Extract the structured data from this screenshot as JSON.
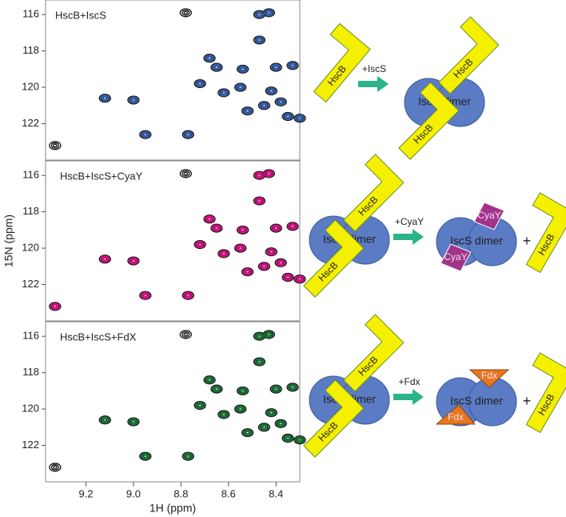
{
  "chart_data": [
    {
      "type": "scatter",
      "title": "HscB+IscS",
      "ylabel": "15N (ppm)",
      "xlim": [
        9.37,
        8.3
      ],
      "ylim": [
        115.2,
        124
      ],
      "yticks": [
        116,
        118,
        120,
        122
      ],
      "series": [
        {
          "color": "#111111",
          "x": [
            9.33,
            9.12,
            9.0,
            8.95,
            8.77,
            8.78,
            8.68,
            8.65,
            8.62,
            8.55,
            8.54,
            8.47,
            8.43,
            8.47,
            8.4,
            8.33,
            8.42,
            8.38,
            8.35,
            8.3,
            8.45,
            8.72,
            8.52
          ],
          "y": [
            123.2,
            120.6,
            120.7,
            122.6,
            122.6,
            115.9,
            118.4,
            118.9,
            120.3,
            120.0,
            119.0,
            116.0,
            115.9,
            117.4,
            118.9,
            118.8,
            120.2,
            120.8,
            121.6,
            121.7,
            121.0,
            119.8,
            121.3
          ]
        },
        {
          "color": "#3a64b0",
          "x": [
            9.12,
            9.0,
            8.95,
            8.77,
            8.68,
            8.65,
            8.62,
            8.55,
            8.54,
            8.47,
            8.43,
            8.47,
            8.4,
            8.33,
            8.42,
            8.38,
            8.35,
            8.3,
            8.45,
            8.72,
            8.52
          ],
          "y": [
            120.6,
            120.7,
            122.6,
            122.6,
            118.4,
            118.9,
            120.3,
            120.0,
            119.0,
            116.0,
            115.9,
            117.4,
            118.9,
            118.8,
            120.2,
            120.8,
            121.6,
            121.7,
            121.0,
            119.8,
            121.3
          ]
        }
      ]
    },
    {
      "type": "scatter",
      "title": "HscB+IscS+CyaY",
      "xlim": [
        9.37,
        8.3
      ],
      "ylim": [
        115.2,
        124
      ],
      "yticks": [
        116,
        118,
        120,
        122
      ],
      "series": [
        {
          "color": "#111111",
          "x": [
            9.33,
            9.12,
            9.0,
            8.95,
            8.77,
            8.78,
            8.68,
            8.65,
            8.62,
            8.55,
            8.54,
            8.47,
            8.43,
            8.47,
            8.4,
            8.33,
            8.42,
            8.38,
            8.35,
            8.3,
            8.45,
            8.72,
            8.52
          ],
          "y": [
            123.2,
            120.6,
            120.7,
            122.6,
            122.6,
            115.9,
            118.4,
            118.9,
            120.3,
            120.0,
            119.0,
            116.0,
            115.9,
            117.4,
            118.9,
            118.8,
            120.2,
            120.8,
            121.6,
            121.7,
            121.0,
            119.8,
            121.3
          ]
        },
        {
          "color": "#e0158a",
          "x": [
            9.33,
            9.12,
            9.0,
            8.95,
            8.77,
            8.68,
            8.65,
            8.62,
            8.55,
            8.54,
            8.47,
            8.43,
            8.47,
            8.4,
            8.33,
            8.42,
            8.38,
            8.35,
            8.3,
            8.45,
            8.72,
            8.52
          ],
          "y": [
            123.2,
            120.6,
            120.7,
            122.6,
            122.6,
            118.4,
            118.9,
            120.3,
            120.0,
            119.0,
            116.0,
            115.9,
            117.4,
            118.9,
            118.8,
            120.2,
            120.8,
            121.6,
            121.7,
            121.0,
            119.8,
            121.3
          ]
        }
      ]
    },
    {
      "type": "scatter",
      "title": "HscB+IscS+FdX",
      "xlabel": "1H (ppm)",
      "xlim": [
        9.37,
        8.3
      ],
      "ylim": [
        115.2,
        124
      ],
      "yticks": [
        116,
        118,
        120,
        122
      ],
      "xticks": [
        9.2,
        {
          "value": 9,
          "label": "9.0"
        },
        8.8,
        8.6,
        8.4
      ],
      "series": [
        {
          "color": "#111111",
          "x": [
            9.33,
            9.12,
            9.0,
            8.95,
            8.77,
            8.78,
            8.68,
            8.65,
            8.62,
            8.55,
            8.54,
            8.47,
            8.43,
            8.47,
            8.4,
            8.33,
            8.42,
            8.38,
            8.35,
            8.3,
            8.45,
            8.72,
            8.52
          ],
          "y": [
            123.2,
            120.6,
            120.7,
            122.6,
            122.6,
            115.9,
            118.4,
            118.9,
            120.3,
            120.0,
            119.0,
            116.0,
            115.9,
            117.4,
            118.9,
            118.8,
            120.2,
            120.8,
            121.6,
            121.7,
            121.0,
            119.8,
            121.3
          ]
        },
        {
          "color": "#1e7a3c",
          "x": [
            9.12,
            9.0,
            8.95,
            8.77,
            8.68,
            8.65,
            8.62,
            8.55,
            8.54,
            8.47,
            8.43,
            8.47,
            8.4,
            8.33,
            8.42,
            8.38,
            8.35,
            8.3,
            8.45,
            8.72,
            8.52
          ],
          "y": [
            120.6,
            120.7,
            122.6,
            122.6,
            118.4,
            118.9,
            120.3,
            120.0,
            119.0,
            116.0,
            115.9,
            117.4,
            118.9,
            118.8,
            120.2,
            120.8,
            121.6,
            121.7,
            121.0,
            119.8,
            121.3
          ]
        }
      ]
    }
  ],
  "schemes": [
    {
      "start": [
        "HscB"
      ],
      "arrow": "+IscS",
      "end": {
        "dimer": "IscS dimer",
        "partners": [
          "HscB",
          "HscB"
        ]
      }
    },
    {
      "start": {
        "dimer": "IscS dimer",
        "partners": [
          "HscB",
          "HscB"
        ]
      },
      "arrow": "+CyaY",
      "end": {
        "dimer": "IscS dimer",
        "partners": [
          "CyaY",
          "CyaY"
        ]
      },
      "plus": "+",
      "released": "HscB"
    },
    {
      "start": {
        "dimer": "IscS dimer",
        "partners": [
          "HscB",
          "HscB"
        ]
      },
      "arrow": "+Fdx",
      "end": {
        "dimer": "IscS dimer",
        "partners": [
          "Fdx",
          "Fdx"
        ]
      },
      "plus": "+",
      "released": "HscB"
    }
  ]
}
